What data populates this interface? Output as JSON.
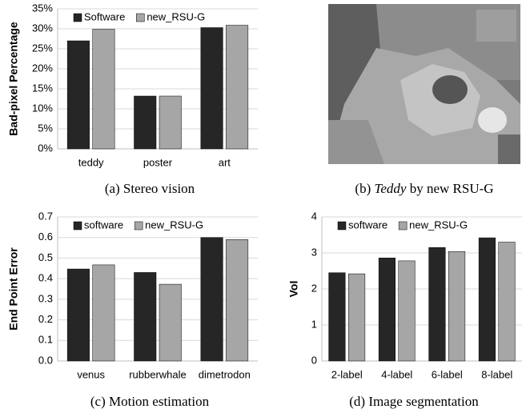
{
  "chart_data": [
    {
      "type": "bar",
      "caption": "(a) Stereo vision",
      "ylabel": "Bad-pixel Percentage",
      "categories": [
        "teddy",
        "poster",
        "art"
      ],
      "series": [
        {
          "name": "Software",
          "color": "#262626",
          "values": [
            27,
            13.2,
            30.3
          ]
        },
        {
          "name": "new_RSU-G",
          "color": "#a6a6a6",
          "values": [
            29.9,
            13.2,
            30.9
          ]
        }
      ],
      "ylim": [
        0,
        35
      ],
      "yticks": [
        {
          "value": 0,
          "label": "0%"
        },
        {
          "value": 5,
          "label": "5%"
        },
        {
          "value": 10,
          "label": "10%"
        },
        {
          "value": 15,
          "label": "15%"
        },
        {
          "value": 20,
          "label": "20%"
        },
        {
          "value": 25,
          "label": "25%"
        },
        {
          "value": 30,
          "label": "30%"
        },
        {
          "value": 35,
          "label": "35%"
        }
      ],
      "grid": true,
      "legend": "top-left"
    },
    {
      "type": "bar",
      "caption": "(c) Motion estimation",
      "ylabel": "End Point Error",
      "categories": [
        "venus",
        "rubberwhale",
        "dimetrodon"
      ],
      "series": [
        {
          "name": "software",
          "color": "#262626",
          "values": [
            0.447,
            0.43,
            0.6
          ]
        },
        {
          "name": "new_RSU-G",
          "color": "#a6a6a6",
          "values": [
            0.467,
            0.373,
            0.59
          ]
        }
      ],
      "ylim": [
        0,
        0.7
      ],
      "yticks": [
        {
          "value": 0,
          "label": "0.0"
        },
        0.1,
        0.2,
        0.3,
        0.4,
        0.5,
        0.6,
        0.7
      ],
      "grid": true,
      "legend": "top-left"
    },
    {
      "type": "bar",
      "caption": "(d) Image segmentation",
      "ylabel": "VoI",
      "categories": [
        "2-label",
        "4-label",
        "6-label",
        "8-label"
      ],
      "series": [
        {
          "name": "software",
          "color": "#262626",
          "values": [
            2.45,
            2.86,
            3.15,
            3.42
          ]
        },
        {
          "name": "new_RSU-G",
          "color": "#a6a6a6",
          "values": [
            2.42,
            2.78,
            3.04,
            3.3
          ]
        }
      ],
      "ylim": [
        0,
        4
      ],
      "yticks": [
        0,
        1,
        2,
        3,
        4
      ],
      "grid": true,
      "legend": "top-left"
    }
  ],
  "image_panel": {
    "caption_prefix": "(b)",
    "caption_italic": "Teddy",
    "caption_rest": "by new RSU-G"
  }
}
